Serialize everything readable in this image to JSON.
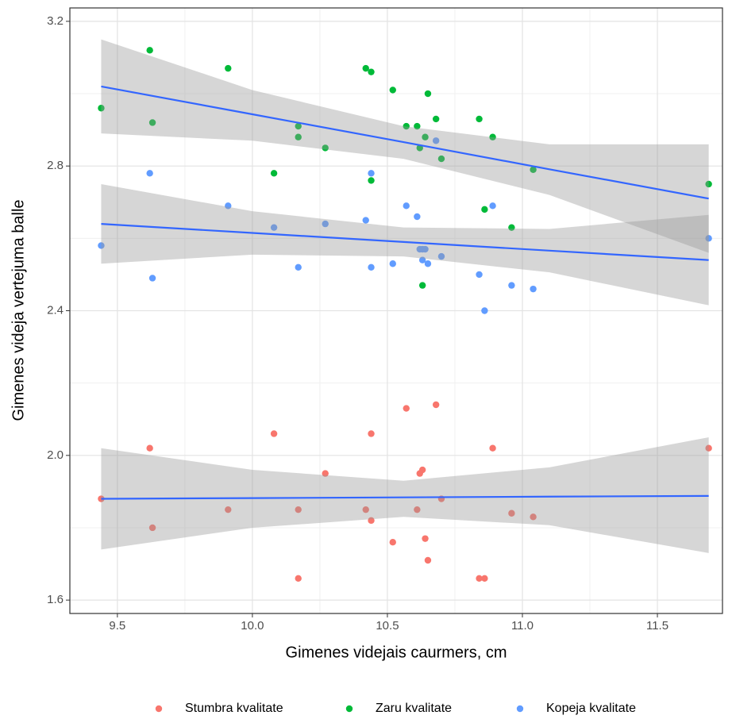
{
  "chart_data": {
    "type": "scatter",
    "x_label": "Gimenes videjais caurmers, cm",
    "y_label": "Gimenes videja vertejuma balle",
    "xlim": [
      9.324,
      11.741
    ],
    "ylim": [
      1.563,
      3.237
    ],
    "xticks": [
      9.5,
      {
        "value": 10,
        "label": "10.0"
      },
      10.5,
      {
        "value": 11,
        "label": "11.0"
      },
      11.5
    ],
    "yticks": [
      1.6,
      {
        "value": 2,
        "label": "2.0"
      },
      2.4,
      2.8,
      3.2
    ],
    "minor_xticks": [
      9.75,
      10.25,
      10.75,
      11.25
    ],
    "minor_yticks": [
      1.8,
      2.2,
      2.6,
      3.0
    ],
    "grid": true,
    "legend": "bottom",
    "series": [
      {
        "name": "Stumbra kvalitate",
        "color": "#f8766d",
        "x": [
          9.44,
          9.62,
          9.63,
          9.91,
          10.08,
          10.17,
          10.17,
          10.27,
          10.42,
          10.44,
          10.44,
          10.52,
          10.57,
          10.61,
          10.62,
          10.63,
          10.64,
          10.65,
          10.68,
          10.7,
          10.84,
          10.86,
          10.89,
          10.96,
          11.04,
          11.69
        ],
        "values": [
          1.88,
          2.02,
          1.8,
          1.85,
          2.06,
          1.85,
          1.66,
          1.95,
          1.85,
          2.06,
          1.82,
          1.76,
          2.13,
          1.85,
          1.95,
          1.96,
          1.77,
          1.71,
          2.14,
          1.88,
          1.66,
          1.66,
          2.02,
          1.84,
          1.83,
          2.02
        ]
      },
      {
        "name": "Zaru kvalitate",
        "color": "#00ba38",
        "x": [
          9.44,
          9.62,
          9.63,
          9.91,
          10.08,
          10.17,
          10.17,
          10.27,
          10.42,
          10.44,
          10.44,
          10.52,
          10.57,
          10.61,
          10.62,
          10.63,
          10.64,
          10.65,
          10.68,
          10.7,
          10.84,
          10.86,
          10.89,
          10.96,
          11.04,
          11.69
        ],
        "values": [
          2.96,
          3.12,
          2.92,
          3.07,
          2.78,
          2.91,
          2.88,
          2.85,
          3.07,
          3.06,
          2.76,
          3.01,
          2.91,
          2.91,
          2.85,
          2.47,
          2.88,
          3.0,
          2.93,
          2.82,
          2.93,
          2.68,
          2.88,
          2.63,
          2.79,
          2.75
        ]
      },
      {
        "name": "Kopeja kvalitate",
        "color": "#619cff",
        "x": [
          9.44,
          9.62,
          9.63,
          9.91,
          10.08,
          10.17,
          10.27,
          10.42,
          10.44,
          10.44,
          10.52,
          10.57,
          10.61,
          10.62,
          10.63,
          10.64,
          10.63,
          10.65,
          10.68,
          10.7,
          10.84,
          10.86,
          10.89,
          10.96,
          11.04,
          11.69
        ],
        "values": [
          2.58,
          2.78,
          2.49,
          2.69,
          2.63,
          2.52,
          2.64,
          2.65,
          2.78,
          2.52,
          2.53,
          2.69,
          2.66,
          2.57,
          2.57,
          2.57,
          2.54,
          2.53,
          2.87,
          2.55,
          2.5,
          2.4,
          2.69,
          2.47,
          2.46,
          2.6
        ]
      }
    ],
    "fit_color": "#3366ff",
    "band_color": "#999999",
    "fits": [
      {
        "x": [
          9.44,
          10.0,
          10.56,
          11.1,
          11.69
        ],
        "values": [
          1.88,
          1.882,
          1.884,
          1.886,
          1.888
        ],
        "lower": [
          1.74,
          1.8,
          1.83,
          1.807,
          1.73
        ],
        "upper": [
          2.02,
          1.96,
          1.93,
          1.967,
          2.05
        ]
      },
      {
        "x": [
          9.44,
          10.0,
          10.56,
          11.1,
          11.69
        ],
        "values": [
          3.02,
          2.943,
          2.866,
          2.791,
          2.71
        ],
        "lower": [
          2.89,
          2.87,
          2.82,
          2.72,
          2.56
        ],
        "upper": [
          3.15,
          3.01,
          2.91,
          2.86,
          2.86
        ]
      },
      {
        "x": [
          9.44,
          10.0,
          10.56,
          11.1,
          11.69
        ],
        "values": [
          2.64,
          2.615,
          2.59,
          2.566,
          2.54
        ],
        "lower": [
          2.53,
          2.555,
          2.55,
          2.506,
          2.415
        ],
        "upper": [
          2.75,
          2.675,
          2.63,
          2.626,
          2.665
        ]
      }
    ]
  }
}
